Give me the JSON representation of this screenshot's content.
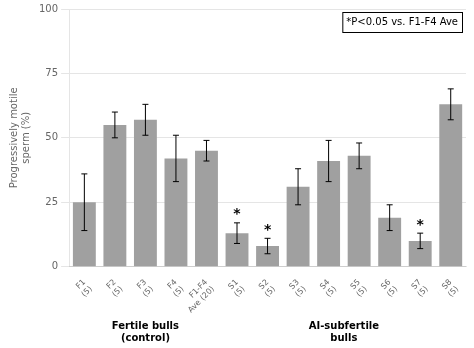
{
  "chart_data": {
    "type": "bar",
    "categories": [
      "F1\n(5)",
      "F2\n(5)",
      "F3\n(5)",
      "F4\n(5)",
      "F1-F4\nAve (20)",
      "S1\n(5)",
      "S2\n(5)",
      "S3\n(5)",
      "S4\n(5)",
      "S5\n(5)",
      "S6\n(5)",
      "S7\n(5)",
      "S8\n(5)"
    ],
    "values": [
      25,
      55,
      57,
      42,
      45,
      13,
      8,
      31,
      41,
      43,
      19,
      10,
      63
    ],
    "errors": [
      11,
      5,
      6,
      9,
      4,
      4,
      3,
      7,
      8,
      5,
      5,
      3,
      6
    ],
    "significance": [
      null,
      null,
      null,
      null,
      null,
      "*",
      "*",
      null,
      null,
      null,
      null,
      "*",
      null
    ],
    "color": "#a0a0a0",
    "ylabel": "Progressively motile\nsperm (%)",
    "ylim": [
      0,
      100
    ],
    "yticks": [
      0,
      25,
      50,
      75,
      100
    ],
    "grid": true,
    "annotations": [
      "*P<0.05 vs. F1-F4 Ave"
    ],
    "groups": [
      {
        "name": "Fertile bulls\n(control)",
        "categories": [
          "F1\n(5)",
          "F2\n(5)",
          "F3\n(5)",
          "F4\n(5)",
          "F1-F4\nAve (20)"
        ]
      },
      {
        "name": "AI-subfertile\nbulls",
        "categories": [
          "S1\n(5)",
          "S2\n(5)",
          "S3\n(5)",
          "S4\n(5)",
          "S5\n(5)",
          "S6\n(5)",
          "S7\n(5)",
          "S8\n(5)"
        ]
      }
    ]
  }
}
